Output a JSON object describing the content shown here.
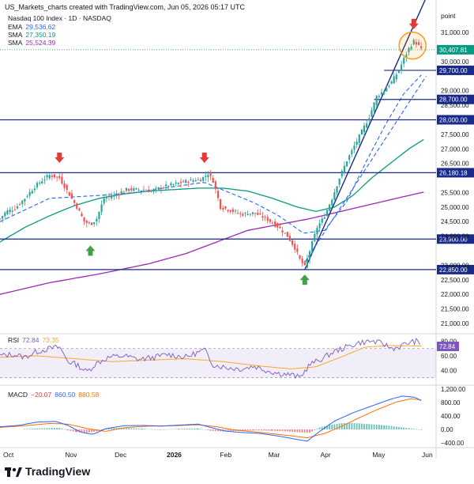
{
  "header": {
    "credit": "US_Markets_charts created with TradingView.com, Jun 05, 2026 05:17 UTC"
  },
  "legend": {
    "symbol": "Nasdaq 100 Index · 1D · NASDAQ",
    "indicators": [
      {
        "name": "EMA",
        "value": "29,536.62",
        "color": "#2962ff"
      },
      {
        "name": "SMA",
        "value": "27,350.19",
        "color": "#089981"
      },
      {
        "name": "SMA",
        "value": "25,524.39",
        "color": "#9c27b0"
      }
    ]
  },
  "axis": {
    "unit": "point"
  },
  "chart_data": {
    "type": "candlestick",
    "price_axis": {
      "ticks": [
        "31,000.00",
        "30,000.00",
        "29,000.00",
        "28,500.00",
        "27,500.00",
        "27,000.00",
        "26,500.00",
        "25,500.00",
        "25,000.00",
        "24,500.00",
        "24,000.00",
        "23,000.00",
        "22,500.00",
        "22,000.00",
        "21,500.00",
        "21,000.00"
      ],
      "tick_values": [
        31000,
        30000,
        29000,
        28500,
        27500,
        27000,
        26500,
        25500,
        25000,
        24500,
        24000,
        23000,
        22500,
        22000,
        21500,
        21000
      ],
      "range": [
        20700,
        31900
      ]
    },
    "x_axis": {
      "labels": [
        "Oct",
        "Nov",
        "Dec",
        "2026",
        "Feb",
        "Mar",
        "Apr",
        "May",
        "Jun"
      ],
      "label_index": [
        0,
        50,
        90,
        132,
        175,
        214,
        256,
        298,
        338
      ]
    },
    "last_price": "30,407.81",
    "last_value": 30407.81,
    "levels": [
      {
        "label": "29,700.00",
        "value": 29700,
        "from": 310
      },
      {
        "label": "28,700.00",
        "value": 28700,
        "from": 302
      },
      {
        "label": "28,000.00",
        "value": 28000,
        "from": 0
      },
      {
        "label": "26,180.18",
        "value": 26180.18,
        "from": 0
      },
      {
        "label": "23,900.00",
        "value": 23900,
        "from": 0
      },
      {
        "label": "22,850.00",
        "value": 22850,
        "from": 0
      }
    ],
    "price_path": [
      [
        0,
        24600
      ],
      [
        5,
        24850
      ],
      [
        12,
        24950
      ],
      [
        20,
        25300
      ],
      [
        28,
        25700
      ],
      [
        35,
        25950
      ],
      [
        40,
        26100
      ],
      [
        48,
        26000
      ],
      [
        55,
        25500
      ],
      [
        62,
        25000
      ],
      [
        68,
        24500
      ],
      [
        73,
        24400
      ],
      [
        78,
        24600
      ],
      [
        84,
        25300
      ],
      [
        92,
        25400
      ],
      [
        102,
        25600
      ],
      [
        112,
        25600
      ],
      [
        122,
        25550
      ],
      [
        132,
        25700
      ],
      [
        142,
        25800
      ],
      [
        152,
        25900
      ],
      [
        162,
        25950
      ],
      [
        168,
        26150
      ],
      [
        172,
        25900
      ],
      [
        178,
        25000
      ],
      [
        185,
        24900
      ],
      [
        195,
        24750
      ],
      [
        205,
        24800
      ],
      [
        215,
        24600
      ],
      [
        225,
        24300
      ],
      [
        232,
        24000
      ],
      [
        238,
        23600
      ],
      [
        242,
        23200
      ],
      [
        246,
        22950
      ],
      [
        250,
        23500
      ],
      [
        256,
        24300
      ],
      [
        262,
        24700
      ],
      [
        268,
        25300
      ],
      [
        274,
        26000
      ],
      [
        280,
        26600
      ],
      [
        286,
        27100
      ],
      [
        292,
        27600
      ],
      [
        298,
        28100
      ],
      [
        304,
        28800
      ],
      [
        310,
        29000
      ],
      [
        316,
        29300
      ],
      [
        322,
        29700
      ],
      [
        326,
        30100
      ],
      [
        330,
        30450
      ],
      [
        334,
        30700
      ],
      [
        337,
        30600
      ],
      [
        340,
        30407.81
      ]
    ],
    "sma50_path": [
      [
        0,
        23800
      ],
      [
        20,
        24300
      ],
      [
        40,
        24700
      ],
      [
        60,
        25050
      ],
      [
        80,
        25300
      ],
      [
        100,
        25450
      ],
      [
        120,
        25550
      ],
      [
        140,
        25600
      ],
      [
        160,
        25650
      ],
      [
        180,
        25650
      ],
      [
        200,
        25550
      ],
      [
        220,
        25300
      ],
      [
        240,
        25000
      ],
      [
        255,
        24850
      ],
      [
        270,
        25000
      ],
      [
        285,
        25400
      ],
      [
        300,
        26000
      ],
      [
        315,
        26500
      ],
      [
        330,
        27000
      ],
      [
        343,
        27350.19
      ]
    ],
    "sma200_path": [
      [
        0,
        22000
      ],
      [
        40,
        22400
      ],
      [
        80,
        22700
      ],
      [
        120,
        23050
      ],
      [
        150,
        23400
      ],
      [
        175,
        23800
      ],
      [
        200,
        24200
      ],
      [
        225,
        24400
      ],
      [
        250,
        24600
      ],
      [
        275,
        24850
      ],
      [
        300,
        25100
      ],
      [
        325,
        25350
      ],
      [
        343,
        25524.39
      ]
    ],
    "ema_path": [
      [
        0,
        24500
      ],
      [
        20,
        24900
      ],
      [
        40,
        25300
      ],
      [
        60,
        25350
      ],
      [
        80,
        25400
      ],
      [
        110,
        25500
      ],
      [
        140,
        25700
      ],
      [
        165,
        25850
      ],
      [
        185,
        25500
      ],
      [
        205,
        25150
      ],
      [
        225,
        24700
      ],
      [
        245,
        24100
      ],
      [
        262,
        24200
      ],
      [
        280,
        25200
      ],
      [
        296,
        26600
      ],
      [
        312,
        27900
      ],
      [
        326,
        28900
      ],
      [
        340,
        29536.62
      ]
    ],
    "trendlines": [
      {
        "from": [
          246,
          22850
        ],
        "to": [
          344,
          32200
        ]
      },
      {
        "from": [
          246,
          23100
        ],
        "to": [
          344,
          29500
        ],
        "dashed": true
      }
    ],
    "annotations": [
      {
        "kind": "arrow-down",
        "at": [
          48,
          26600
        ],
        "color": "#e53935"
      },
      {
        "kind": "arrow-down",
        "at": [
          165,
          26600
        ],
        "color": "#e53935"
      },
      {
        "kind": "arrow-up",
        "at": [
          73,
          23600
        ],
        "color": "#43a047"
      },
      {
        "kind": "arrow-up",
        "at": [
          246,
          22600
        ],
        "color": "#43a047"
      },
      {
        "kind": "arrow-down",
        "at": [
          334,
          31200
        ],
        "color": "#e53935"
      },
      {
        "kind": "circle",
        "at": [
          333,
          30550
        ],
        "color": "#f59c1a"
      }
    ]
  },
  "rsi": {
    "title": "RSI",
    "value": "72.84",
    "ma_value": "73.35",
    "ticks": [
      "80.00",
      "60.00",
      "40.00"
    ],
    "tick_values": [
      80,
      60,
      40
    ],
    "band": [
      70,
      30
    ],
    "range": [
      22,
      88
    ],
    "path": [
      [
        0,
        60
      ],
      [
        10,
        62
      ],
      [
        20,
        58
      ],
      [
        30,
        66
      ],
      [
        40,
        70
      ],
      [
        48,
        72
      ],
      [
        55,
        52
      ],
      [
        62,
        48
      ],
      [
        70,
        38
      ],
      [
        78,
        50
      ],
      [
        88,
        58
      ],
      [
        100,
        60
      ],
      [
        112,
        55
      ],
      [
        125,
        58
      ],
      [
        135,
        62
      ],
      [
        150,
        58
      ],
      [
        165,
        68
      ],
      [
        172,
        48
      ],
      [
        182,
        44
      ],
      [
        195,
        42
      ],
      [
        205,
        46
      ],
      [
        215,
        40
      ],
      [
        225,
        36
      ],
      [
        235,
        34
      ],
      [
        242,
        30
      ],
      [
        250,
        48
      ],
      [
        260,
        56
      ],
      [
        270,
        66
      ],
      [
        280,
        72
      ],
      [
        290,
        78
      ],
      [
        300,
        80
      ],
      [
        310,
        76
      ],
      [
        316,
        70
      ],
      [
        322,
        72
      ],
      [
        330,
        78
      ],
      [
        336,
        80
      ],
      [
        340,
        73
      ]
    ],
    "ma_path": [
      [
        0,
        58
      ],
      [
        30,
        60
      ],
      [
        60,
        56
      ],
      [
        90,
        52
      ],
      [
        120,
        54
      ],
      [
        150,
        56
      ],
      [
        180,
        52
      ],
      [
        210,
        46
      ],
      [
        235,
        42
      ],
      [
        255,
        45
      ],
      [
        275,
        58
      ],
      [
        295,
        72
      ],
      [
        315,
        74
      ],
      [
        340,
        73.35
      ]
    ]
  },
  "macd": {
    "title": "MACD",
    "hist_value": "−20.07",
    "macd_value": "860.50",
    "signal_value": "880.58",
    "ticks": [
      "1,200.00",
      "800.00",
      "400.00",
      "0.00",
      "−400.00"
    ],
    "tick_values": [
      1200,
      800,
      400,
      0,
      -400
    ],
    "range": [
      -520,
      1300
    ],
    "macd_path": [
      [
        0,
        80
      ],
      [
        15,
        120
      ],
      [
        30,
        220
      ],
      [
        45,
        240
      ],
      [
        55,
        120
      ],
      [
        65,
        -80
      ],
      [
        75,
        -150
      ],
      [
        85,
        20
      ],
      [
        100,
        110
      ],
      [
        115,
        120
      ],
      [
        130,
        100
      ],
      [
        145,
        130
      ],
      [
        160,
        160
      ],
      [
        170,
        60
      ],
      [
        182,
        -50
      ],
      [
        195,
        -90
      ],
      [
        210,
        -120
      ],
      [
        225,
        -200
      ],
      [
        240,
        -300
      ],
      [
        248,
        -350
      ],
      [
        258,
        -60
      ],
      [
        270,
        250
      ],
      [
        285,
        500
      ],
      [
        300,
        700
      ],
      [
        315,
        900
      ],
      [
        325,
        1000
      ],
      [
        335,
        960
      ],
      [
        340,
        860.5
      ]
    ],
    "signal_path": [
      [
        0,
        60
      ],
      [
        20,
        110
      ],
      [
        40,
        180
      ],
      [
        55,
        160
      ],
      [
        70,
        30
      ],
      [
        85,
        -60
      ],
      [
        100,
        50
      ],
      [
        120,
        100
      ],
      [
        140,
        110
      ],
      [
        160,
        140
      ],
      [
        175,
        80
      ],
      [
        190,
        -20
      ],
      [
        210,
        -90
      ],
      [
        230,
        -170
      ],
      [
        248,
        -250
      ],
      [
        262,
        -120
      ],
      [
        275,
        80
      ],
      [
        290,
        350
      ],
      [
        305,
        600
      ],
      [
        320,
        820
      ],
      [
        332,
        920
      ],
      [
        340,
        880.58
      ]
    ],
    "hist": [
      [
        20,
        10
      ],
      [
        30,
        30
      ],
      [
        40,
        40
      ],
      [
        48,
        50
      ],
      [
        55,
        -30
      ],
      [
        62,
        -80
      ],
      [
        70,
        -100
      ],
      [
        78,
        -60
      ],
      [
        88,
        40
      ],
      [
        100,
        50
      ],
      [
        115,
        20
      ],
      [
        130,
        -10
      ],
      [
        145,
        20
      ],
      [
        160,
        30
      ],
      [
        170,
        -40
      ],
      [
        180,
        -60
      ],
      [
        190,
        -50
      ],
      [
        205,
        -30
      ],
      [
        220,
        -40
      ],
      [
        232,
        -60
      ],
      [
        242,
        -90
      ],
      [
        250,
        -100
      ],
      [
        258,
        60
      ],
      [
        266,
        130
      ],
      [
        274,
        180
      ],
      [
        282,
        200
      ],
      [
        290,
        180
      ],
      [
        298,
        160
      ],
      [
        306,
        140
      ],
      [
        314,
        110
      ],
      [
        322,
        70
      ],
      [
        330,
        40
      ],
      [
        336,
        10
      ],
      [
        340,
        -20
      ]
    ]
  },
  "footer": {
    "brand": "TradingView"
  }
}
